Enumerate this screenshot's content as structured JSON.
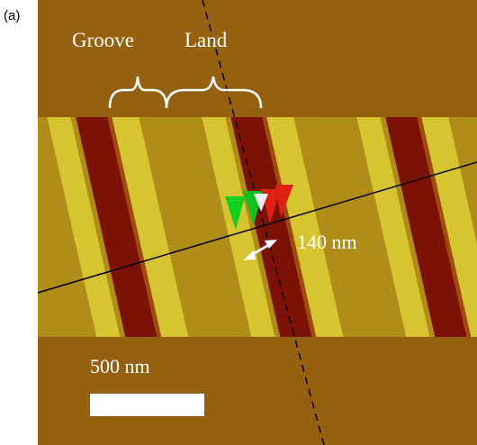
{
  "panel_label": "(a)",
  "labels": {
    "groove": "Groove",
    "land": "Land"
  },
  "measurement": "140 nm",
  "scale_bar": "500 nm"
}
